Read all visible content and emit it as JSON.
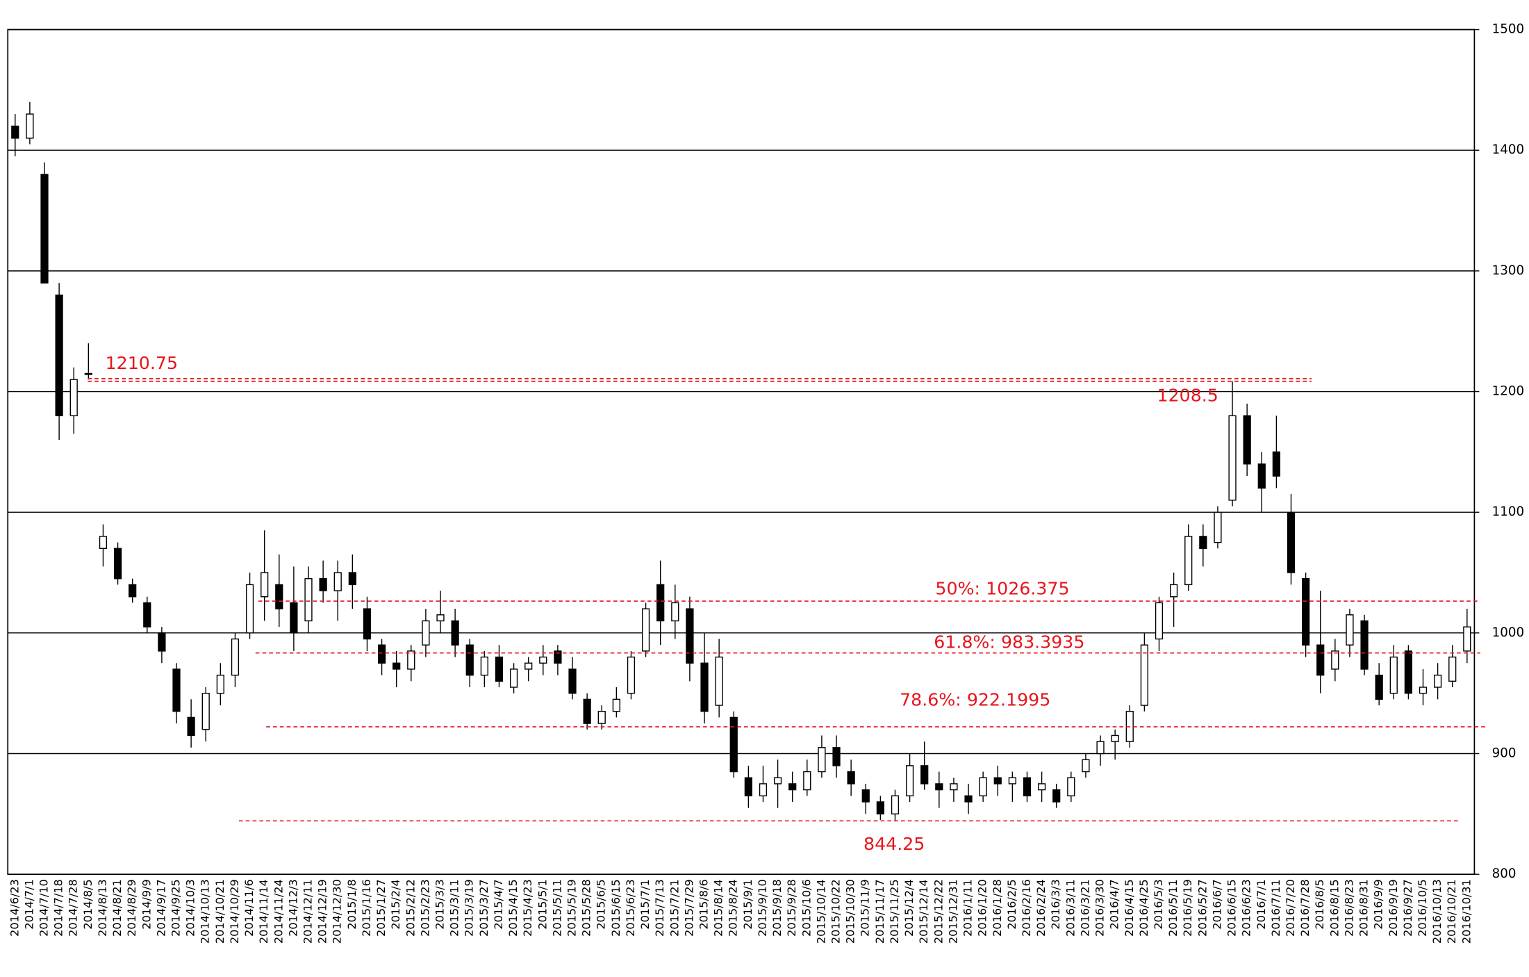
{
  "chart_data": {
    "type": "candlestick",
    "categories": [
      "2014/6/23",
      "2014/7/1",
      "2014/7/10",
      "2014/7/18",
      "2014/7/28",
      "2014/8/5",
      "2014/8/13",
      "2014/8/21",
      "2014/8/29",
      "2014/9/9",
      "2014/9/17",
      "2014/9/25",
      "2014/10/3",
      "2014/10/13",
      "2014/10/21",
      "2014/10/29",
      "2014/11/6",
      "2014/11/14",
      "2014/11/24",
      "2014/12/3",
      "2014/12/11",
      "2014/12/19",
      "2014/12/30",
      "2015/1/8",
      "2015/1/16",
      "2015/1/27",
      "2015/2/4",
      "2015/2/12",
      "2015/2/23",
      "2015/3/3",
      "2015/3/11",
      "2015/3/19",
      "2015/3/27",
      "2015/4/7",
      "2015/4/15",
      "2015/4/23",
      "2015/5/1",
      "2015/5/11",
      "2015/5/19",
      "2015/5/28",
      "2015/6/5",
      "2015/6/15",
      "2015/6/23",
      "2015/7/1",
      "2015/7/13",
      "2015/7/21",
      "2015/7/29",
      "2015/8/6",
      "2015/8/14",
      "2015/8/24",
      "2015/9/1",
      "2015/9/10",
      "2015/9/18",
      "2015/9/28",
      "2015/10/6",
      "2015/10/14",
      "2015/10/22",
      "2015/10/30",
      "2015/11/9",
      "2015/11/17",
      "2015/11/25",
      "2015/12/4",
      "2015/12/14",
      "2015/12/22",
      "2015/12/31",
      "2016/1/11",
      "2016/1/20",
      "2016/1/28",
      "2016/2/5",
      "2016/2/16",
      "2016/2/24",
      "2016/3/3",
      "2016/3/11",
      "2016/3/21",
      "2016/3/30",
      "2016/4/7",
      "2016/4/15",
      "2016/4/25",
      "2016/5/3",
      "2016/5/11",
      "2016/5/19",
      "2016/5/27",
      "2016/6/7",
      "2016/6/15",
      "2016/6/23",
      "2016/7/1",
      "2016/7/11",
      "2016/7/20",
      "2016/7/28",
      "2016/8/5",
      "2016/8/15",
      "2016/8/23",
      "2016/8/31",
      "2016/9/9",
      "2016/9/19",
      "2016/9/27",
      "2016/10/5",
      "2016/10/13",
      "2016/10/21",
      "2016/10/31"
    ],
    "open": [
      1420,
      1410,
      1380,
      1280,
      1180,
      1215,
      1070,
      1070,
      1040,
      1025,
      1000,
      970,
      930,
      920,
      950,
      965,
      1000,
      1030,
      1040,
      1025,
      1010,
      1045,
      1035,
      1050,
      1020,
      990,
      975,
      970,
      990,
      1010,
      1010,
      990,
      965,
      980,
      955,
      970,
      975,
      985,
      970,
      945,
      925,
      935,
      950,
      985,
      1040,
      1010,
      1020,
      975,
      940,
      930,
      880,
      865,
      875,
      875,
      870,
      885,
      905,
      885,
      870,
      860,
      850,
      865,
      890,
      875,
      870,
      865,
      865,
      880,
      875,
      880,
      870,
      870,
      865,
      885,
      900,
      910,
      910,
      940,
      995,
      1030,
      1040,
      1080,
      1075,
      1110,
      1180,
      1140,
      1150,
      1100,
      1045,
      990,
      970,
      990,
      1010,
      965,
      950,
      985,
      950,
      955,
      960,
      985
    ],
    "high": [
      1430,
      1440,
      1390,
      1290,
      1220,
      1240,
      1090,
      1075,
      1045,
      1030,
      1005,
      975,
      945,
      955,
      975,
      1000,
      1050,
      1085,
      1065,
      1055,
      1055,
      1060,
      1060,
      1065,
      1030,
      995,
      985,
      990,
      1020,
      1035,
      1020,
      995,
      985,
      990,
      975,
      980,
      990,
      990,
      980,
      950,
      940,
      955,
      985,
      1025,
      1060,
      1040,
      1030,
      1000,
      995,
      935,
      890,
      890,
      895,
      885,
      895,
      915,
      915,
      895,
      875,
      865,
      870,
      900,
      910,
      885,
      880,
      875,
      885,
      890,
      885,
      885,
      885,
      875,
      885,
      900,
      915,
      920,
      940,
      1000,
      1030,
      1050,
      1090,
      1090,
      1105,
      1208.5,
      1190,
      1150,
      1180,
      1115,
      1050,
      1035,
      995,
      1020,
      1015,
      975,
      990,
      990,
      970,
      975,
      990,
      1020
    ],
    "low": [
      1395,
      1405,
      1290,
      1160,
      1165,
      1210,
      1055,
      1040,
      1025,
      1000,
      975,
      925,
      905,
      910,
      940,
      955,
      995,
      1010,
      1005,
      985,
      1000,
      1025,
      1010,
      1020,
      985,
      965,
      955,
      960,
      980,
      1000,
      980,
      955,
      955,
      955,
      950,
      960,
      965,
      965,
      945,
      920,
      920,
      930,
      945,
      980,
      990,
      995,
      960,
      925,
      930,
      880,
      855,
      860,
      855,
      860,
      865,
      880,
      880,
      865,
      850,
      845,
      844.25,
      860,
      870,
      855,
      860,
      850,
      860,
      865,
      860,
      860,
      860,
      855,
      860,
      880,
      890,
      895,
      905,
      935,
      985,
      1005,
      1035,
      1055,
      1070,
      1105,
      1130,
      1100,
      1120,
      1040,
      980,
      950,
      960,
      980,
      965,
      940,
      945,
      945,
      940,
      945,
      955,
      975
    ],
    "close": [
      1410,
      1430,
      1290,
      1180,
      1210,
      1215,
      1080,
      1045,
      1030,
      1005,
      985,
      935,
      915,
      950,
      965,
      995,
      1040,
      1050,
      1020,
      1000,
      1045,
      1035,
      1050,
      1040,
      995,
      975,
      970,
      985,
      1010,
      1015,
      990,
      965,
      980,
      960,
      970,
      975,
      980,
      975,
      950,
      925,
      935,
      945,
      980,
      1020,
      1010,
      1025,
      975,
      935,
      980,
      885,
      865,
      875,
      880,
      870,
      885,
      905,
      890,
      875,
      860,
      850,
      865,
      890,
      875,
      870,
      875,
      860,
      880,
      875,
      880,
      865,
      875,
      860,
      880,
      895,
      910,
      915,
      935,
      990,
      1025,
      1040,
      1080,
      1070,
      1100,
      1180,
      1140,
      1120,
      1130,
      1050,
      990,
      965,
      985,
      1015,
      970,
      945,
      980,
      950,
      955,
      965,
      980,
      1005
    ],
    "ylim": [
      800,
      1500
    ],
    "yticks": [
      800,
      900,
      1000,
      1100,
      1200,
      1300,
      1400,
      1500
    ],
    "grid": true,
    "up_color": "#ffffff",
    "down_color": "#000000",
    "annotations": [
      {
        "label": "1210.75",
        "value": 1210.75
      },
      {
        "label": "1208.5",
        "value": 1208.5
      },
      {
        "label": "50%: 1026.375",
        "value": 1026.375
      },
      {
        "label": "61.8%: 983.3935",
        "value": 983.3935
      },
      {
        "label": "78.6%: 922.1995",
        "value": 922.1995
      },
      {
        "label": "844.25",
        "value": 844.25
      }
    ],
    "annotation_color": "#e8141b"
  }
}
